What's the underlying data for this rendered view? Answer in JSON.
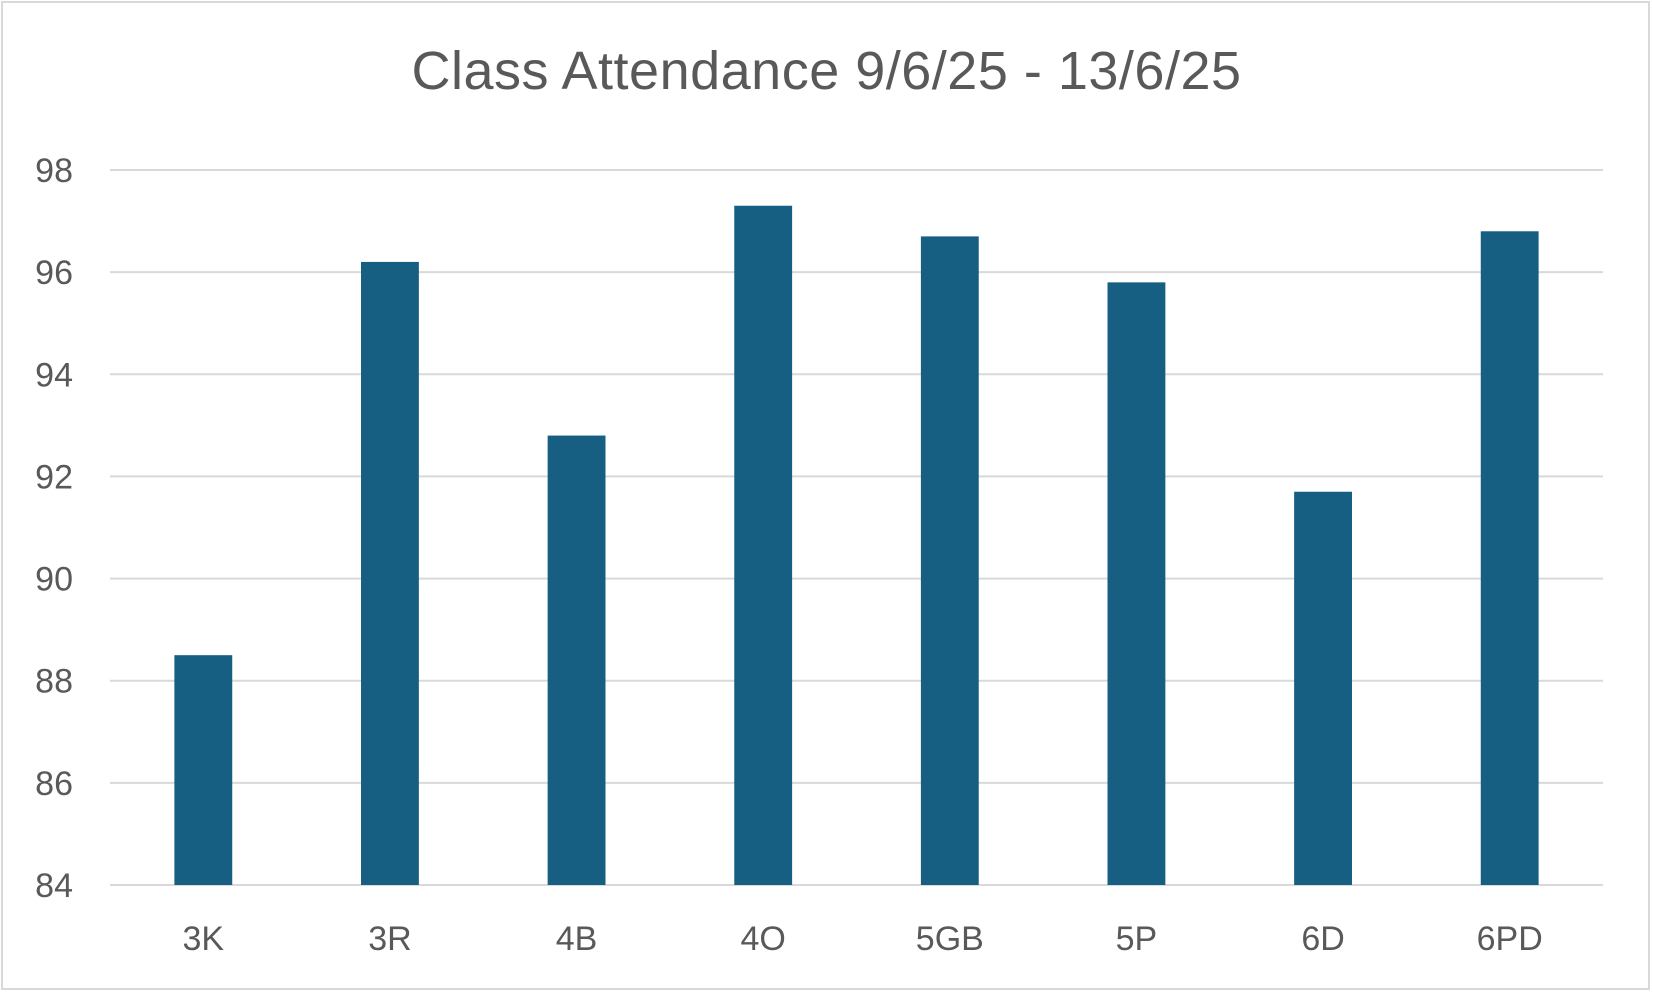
{
  "chart_data": {
    "type": "bar",
    "title": "Class Attendance 9/6/25 - 13/6/25",
    "xlabel": "",
    "ylabel": "",
    "categories": [
      "3K",
      "3R",
      "4B",
      "4O",
      "5GB",
      "5P",
      "6D",
      "6PD"
    ],
    "values": [
      88.5,
      96.2,
      92.8,
      97.3,
      96.7,
      95.8,
      91.7,
      96.8
    ],
    "ylim": [
      84,
      98
    ],
    "yticks": [
      "84",
      "86",
      "88",
      "90",
      "92",
      "94",
      "96",
      "98"
    ],
    "grid": true,
    "legend": "none",
    "bar_color": "#175f82",
    "grid_color": "#d9d9d9",
    "text_color": "#595959"
  }
}
